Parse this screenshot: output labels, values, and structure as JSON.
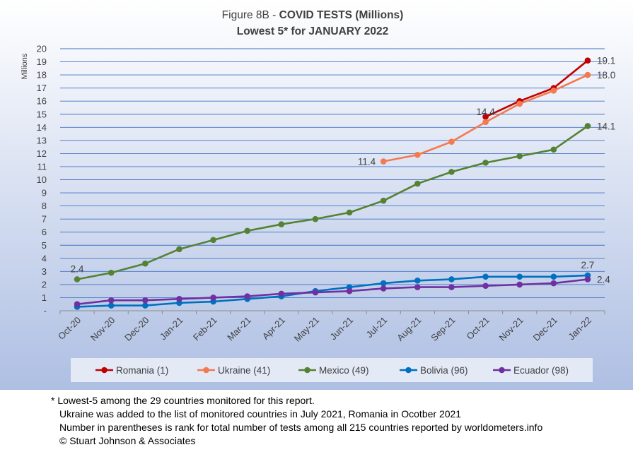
{
  "chart_data": {
    "type": "line",
    "title_prefix": "Figure 8B - ",
    "title_bold": "COVID TESTS (Millions)",
    "subtitle": "Lowest 5* for JANUARY 2022",
    "ylabel": "Millions",
    "ylim": [
      0,
      20
    ],
    "yticks": [
      0,
      1,
      2,
      3,
      4,
      5,
      6,
      7,
      8,
      9,
      10,
      11,
      12,
      13,
      14,
      15,
      16,
      17,
      18,
      19,
      20
    ],
    "ytick_labels": [
      "-",
      "1",
      "2",
      "3",
      "4",
      "5",
      "6",
      "7",
      "8",
      "9",
      "10",
      "11",
      "12",
      "13",
      "14",
      "15",
      "16",
      "17",
      "18",
      "19",
      "20"
    ],
    "grid": true,
    "legend_position": "bottom",
    "categories": [
      "Oct-20",
      "Nov-20",
      "Dec-20",
      "Jan-21",
      "Feb-21",
      "Mar-21",
      "Apr-21",
      "May-21",
      "Jun-21",
      "Jul-21",
      "Aug-21",
      "Sep-21",
      "Oct-21",
      "Nov-21",
      "Dec-21",
      "Jan-22"
    ],
    "series": [
      {
        "name": "Romania (1)",
        "color": "#c00000",
        "values": [
          null,
          null,
          null,
          null,
          null,
          null,
          null,
          null,
          null,
          null,
          null,
          null,
          14.8,
          16.0,
          17.0,
          19.1
        ]
      },
      {
        "name": "Ukraine (41)",
        "color": "#f4794f",
        "values": [
          null,
          null,
          null,
          null,
          null,
          null,
          null,
          null,
          null,
          11.4,
          11.9,
          12.9,
          14.4,
          15.8,
          16.8,
          18.0
        ]
      },
      {
        "name": "Mexico (49)",
        "color": "#548235",
        "values": [
          2.4,
          2.9,
          3.6,
          4.7,
          5.4,
          6.1,
          6.6,
          7.0,
          7.5,
          8.4,
          9.7,
          10.6,
          11.3,
          11.8,
          12.3,
          14.1
        ]
      },
      {
        "name": "Bolivia (96)",
        "color": "#0070c0",
        "values": [
          0.3,
          0.4,
          0.4,
          0.6,
          0.7,
          0.9,
          1.1,
          1.5,
          1.8,
          2.1,
          2.3,
          2.4,
          2.6,
          2.6,
          2.6,
          2.7
        ]
      },
      {
        "name": "Ecuador (98)",
        "color": "#7030a0",
        "values": [
          0.5,
          0.8,
          0.8,
          0.9,
          1.0,
          1.1,
          1.3,
          1.4,
          1.5,
          1.7,
          1.8,
          1.8,
          1.9,
          2.0,
          2.1,
          2.4
        ]
      }
    ],
    "annotations": [
      {
        "text": "2.4",
        "series": 2,
        "index": 0,
        "pos": "above"
      },
      {
        "text": "11.4",
        "series": 1,
        "index": 9,
        "pos": "left"
      },
      {
        "text": "14.4",
        "series": 1,
        "index": 12,
        "pos": "above"
      },
      {
        "text": "19.1",
        "series": 0,
        "index": 15,
        "pos": "right"
      },
      {
        "text": "18.0",
        "series": 1,
        "index": 15,
        "pos": "right"
      },
      {
        "text": "14.1",
        "series": 2,
        "index": 15,
        "pos": "right"
      },
      {
        "text": "2.7",
        "series": 3,
        "index": 15,
        "pos": "above"
      },
      {
        "text": "2.4",
        "series": 4,
        "index": 15,
        "pos": "right"
      }
    ]
  },
  "notes": {
    "line1": "* Lowest-5 among the 29 countries monitored for this report.",
    "line2": "Ukraine was added to the list of monitored countries in July 2021, Romania in Ocotber 2021",
    "line3": "Number in parentheses is rank for total number of tests among all 215 countries reported by worldometers.info",
    "line4": "© Stuart Johnson & Associates"
  }
}
